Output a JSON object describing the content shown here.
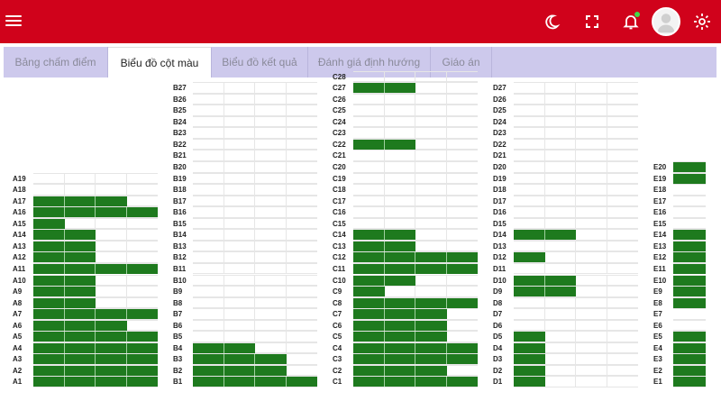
{
  "header": {
    "menu_icon": "menu-icon",
    "icons": [
      "moon-icon",
      "fullscreen-icon",
      "bell-icon",
      "settings-icon"
    ],
    "avatar_icon": "user-avatar"
  },
  "tabs": [
    {
      "label": "Bảng chấm điểm",
      "active": false
    },
    {
      "label": "Biểu đồ cột màu",
      "active": true
    },
    {
      "label": "Biểu đồ kết quả",
      "active": false
    },
    {
      "label": "Đánh giá định hướng",
      "active": false
    },
    {
      "label": "Giáo án",
      "active": false
    }
  ],
  "colors": {
    "header": "#d0021b",
    "tabbar": "#cdc9ec",
    "bar": "#1e7a1e"
  },
  "chart_data": {
    "type": "bar",
    "max_per_row": 4,
    "columns": [
      {
        "name": "A",
        "rows": 19,
        "values": [
          4,
          4,
          4,
          4,
          4,
          3,
          4,
          2,
          2,
          2,
          4,
          2,
          2,
          2,
          1,
          4,
          3,
          0,
          0
        ]
      },
      {
        "name": "B",
        "rows": 27,
        "values": [
          4,
          3,
          3,
          2,
          0,
          0,
          0,
          0,
          0,
          0,
          0,
          0,
          0,
          0,
          0,
          0,
          0,
          0,
          0,
          0,
          0,
          0,
          0,
          0,
          0,
          0,
          0
        ]
      },
      {
        "name": "C",
        "rows": 28,
        "values": [
          4,
          3,
          4,
          4,
          3,
          3,
          3,
          4,
          1,
          2,
          4,
          4,
          2,
          2,
          0,
          0,
          0,
          0,
          0,
          0,
          0,
          2,
          0,
          0,
          0,
          0,
          2,
          0
        ]
      },
      {
        "name": "D",
        "rows": 27,
        "values": [
          1,
          1,
          1,
          1,
          1,
          0,
          0,
          0,
          2,
          2,
          0,
          1,
          0,
          2,
          0,
          0,
          0,
          0,
          0,
          0,
          0,
          0,
          0,
          0,
          0,
          0,
          0
        ]
      },
      {
        "name": "E",
        "rows": 20,
        "values": [
          1,
          1,
          1,
          1,
          1,
          0,
          0,
          1,
          1,
          1,
          1,
          1,
          1,
          1,
          0,
          0,
          0,
          0,
          1,
          1
        ]
      }
    ]
  }
}
